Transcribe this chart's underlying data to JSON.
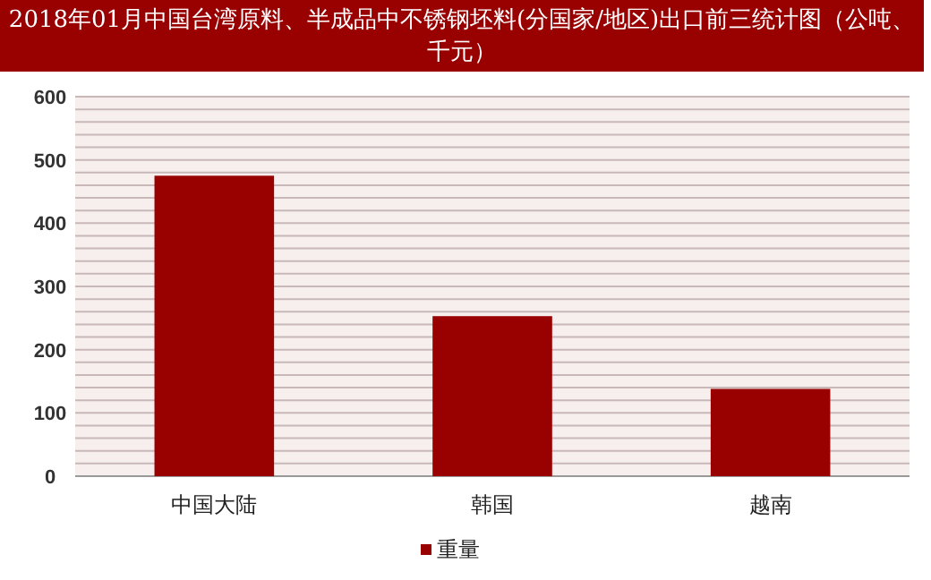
{
  "chart_data": {
    "type": "bar",
    "title": "2018年01月中国台湾原料、半成品中不锈钢坯料(分国家/地区)出口前三统计图（公吨、千元）",
    "categories": [
      "中国大陆",
      "韩国",
      "越南"
    ],
    "series": [
      {
        "name": "重量",
        "color": "#990000",
        "values": [
          475,
          253,
          138
        ]
      }
    ],
    "ylim": [
      0,
      600
    ],
    "yticks": [
      0,
      {
        "value": 20,
        "label": null
      },
      {
        "value": 40,
        "label": null
      },
      {
        "value": 60,
        "label": null
      },
      {
        "value": 80,
        "label": null
      },
      100,
      {
        "value": 120,
        "label": null
      },
      {
        "value": 140,
        "label": null
      },
      {
        "value": 160,
        "label": null
      },
      {
        "value": 180,
        "label": null
      },
      200,
      {
        "value": 220,
        "label": null
      },
      {
        "value": 240,
        "label": null
      },
      {
        "value": 260,
        "label": null
      },
      {
        "value": 280,
        "label": null
      },
      300,
      {
        "value": 320,
        "label": null
      },
      {
        "value": 340,
        "label": null
      },
      {
        "value": 360,
        "label": null
      },
      {
        "value": 380,
        "label": null
      },
      400,
      {
        "value": 420,
        "label": null
      },
      {
        "value": 440,
        "label": null
      },
      {
        "value": 460,
        "label": null
      },
      {
        "value": 480,
        "label": null
      },
      500,
      {
        "value": 520,
        "label": null
      },
      {
        "value": 540,
        "label": null
      },
      {
        "value": 560,
        "label": null
      },
      {
        "value": 580,
        "label": null
      },
      600
    ],
    "grid": "y",
    "legend": "bottom"
  }
}
